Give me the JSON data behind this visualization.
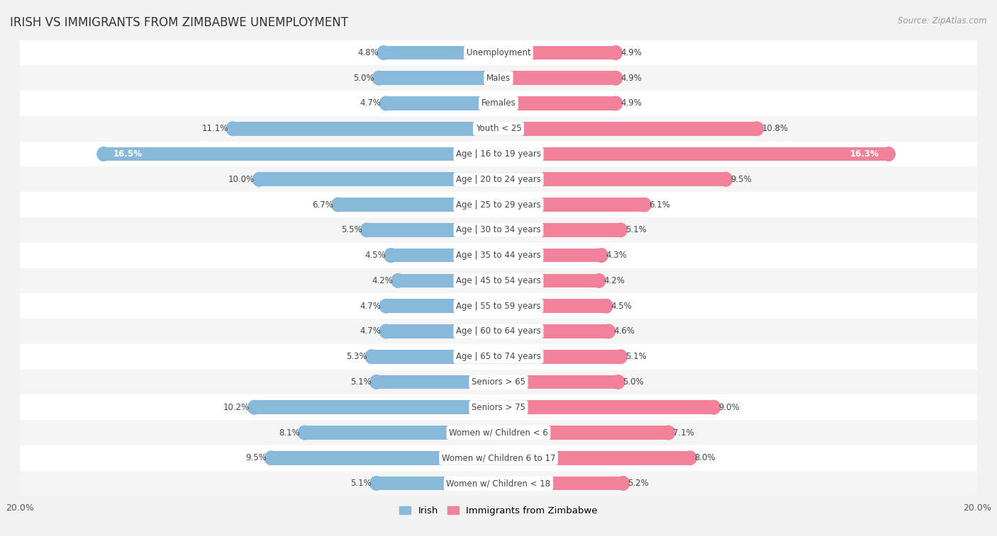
{
  "title": "IRISH VS IMMIGRANTS FROM ZIMBABWE UNEMPLOYMENT",
  "source": "Source: ZipAtlas.com",
  "categories": [
    "Unemployment",
    "Males",
    "Females",
    "Youth < 25",
    "Age | 16 to 19 years",
    "Age | 20 to 24 years",
    "Age | 25 to 29 years",
    "Age | 30 to 34 years",
    "Age | 35 to 44 years",
    "Age | 45 to 54 years",
    "Age | 55 to 59 years",
    "Age | 60 to 64 years",
    "Age | 65 to 74 years",
    "Seniors > 65",
    "Seniors > 75",
    "Women w/ Children < 6",
    "Women w/ Children 6 to 17",
    "Women w/ Children < 18"
  ],
  "irish_values": [
    4.8,
    5.0,
    4.7,
    11.1,
    16.5,
    10.0,
    6.7,
    5.5,
    4.5,
    4.2,
    4.7,
    4.7,
    5.3,
    5.1,
    10.2,
    8.1,
    9.5,
    5.1
  ],
  "zimbabwe_values": [
    4.9,
    4.9,
    4.9,
    10.8,
    16.3,
    9.5,
    6.1,
    5.1,
    4.3,
    4.2,
    4.5,
    4.6,
    5.1,
    5.0,
    9.0,
    7.1,
    8.0,
    5.2
  ],
  "irish_color": "#88b8da",
  "zimbabwe_color": "#f2829a",
  "row_color_even": "#f5f5f5",
  "row_color_odd": "#ffffff",
  "background_color": "#f2f2f2",
  "max_value": 20.0,
  "bar_height": 0.55,
  "title_fontsize": 12,
  "source_fontsize": 8.5,
  "label_fontsize": 8.5,
  "category_fontsize": 8.5
}
